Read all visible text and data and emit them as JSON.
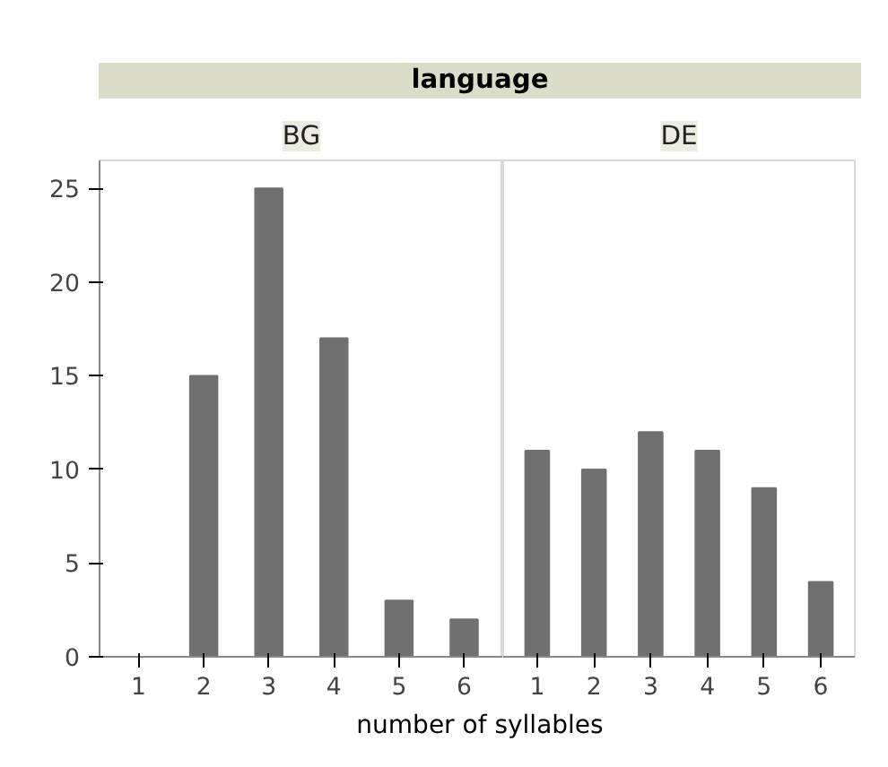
{
  "chart_data": [
    {
      "type": "bar",
      "title": "BG",
      "annotations": [
        "language"
      ],
      "xlabel": "number of syllables",
      "categories": [
        "1",
        "2",
        "3",
        "4",
        "5",
        "6"
      ],
      "values": [
        0,
        15,
        25,
        17,
        3,
        2
      ],
      "color": "#707070",
      "ylim": [
        0,
        26.5
      ],
      "yticks": [
        0,
        5,
        10,
        15,
        20,
        25
      ],
      "grid": false
    },
    {
      "type": "bar",
      "title": "DE",
      "categories": [
        "1",
        "2",
        "3",
        "4",
        "5",
        "6"
      ],
      "values": [
        11,
        10,
        12,
        11,
        9,
        4
      ],
      "color": "#707070",
      "ylim": [
        0,
        26.5
      ],
      "yticks": [
        0,
        5,
        10,
        15,
        20,
        25
      ],
      "grid": false,
      "tick_labels": "x"
    }
  ]
}
